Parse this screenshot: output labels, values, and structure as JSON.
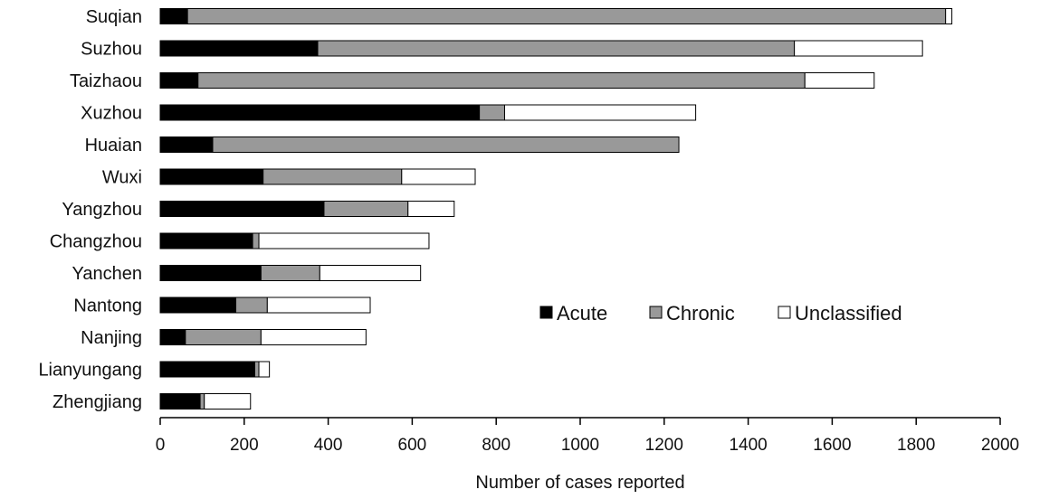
{
  "chart_data": {
    "type": "bar",
    "orientation": "horizontal",
    "stacked": true,
    "title": "",
    "xlabel": "Number  of cases reported",
    "ylabel": "",
    "xlim": [
      0,
      2000
    ],
    "xticks": [
      0,
      200,
      400,
      600,
      800,
      1000,
      1200,
      1400,
      1600,
      1800,
      2000
    ],
    "grid": false,
    "legend_position": "center-right",
    "categories": [
      "Suqian",
      "Suzhou",
      "Taizhaou",
      "Xuzhou",
      "Huaian",
      "Wuxi",
      "Yangzhou",
      "Changzhou",
      "Yanchen",
      "Nantong",
      "Nanjing",
      "Lianyungang",
      "Zhengjiang"
    ],
    "series": [
      {
        "name": "Acute",
        "color": "#000000",
        "values": [
          65,
          375,
          90,
          760,
          125,
          245,
          390,
          220,
          240,
          180,
          60,
          225,
          95
        ]
      },
      {
        "name": "Chronic",
        "color": "#999999",
        "values": [
          1805,
          1135,
          1445,
          60,
          1110,
          330,
          200,
          15,
          140,
          75,
          180,
          10,
          10
        ]
      },
      {
        "name": "Unclassified",
        "color": "#ffffff",
        "values": [
          15,
          305,
          165,
          455,
          0,
          175,
          110,
          405,
          240,
          245,
          250,
          25,
          110
        ]
      }
    ]
  }
}
